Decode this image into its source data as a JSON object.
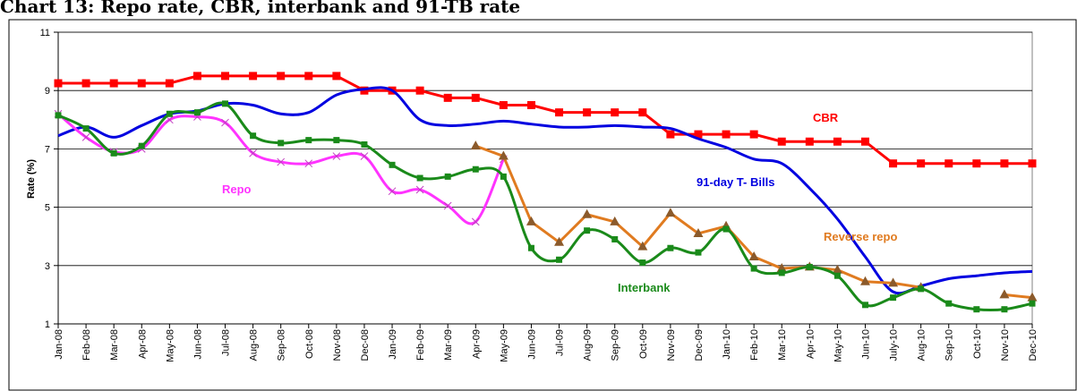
{
  "chart_data": {
    "type": "line",
    "title": "Chart 13: Repo rate, CBR, interbank and 91-TB rate",
    "y_label": "Rate (%)",
    "categories": [
      "Jan-08",
      "Feb-08",
      "Mar-08",
      "Apr-08",
      "May-08",
      "Jun-08",
      "Jul-08",
      "Aug-08",
      "Sep-08",
      "Oct-08",
      "Nov-08",
      "Dec-08",
      "Jan-09",
      "Feb-09",
      "Mar-09",
      "Apr-09",
      "May-09",
      "Jun-09",
      "Jul-09",
      "Aug-09",
      "Sep-09",
      "Oct-09",
      "Nov-09",
      "Dec-09",
      "Jan-10",
      "Feb-10",
      "Mar-10",
      "Apr-10",
      "May-10",
      "Jun-10",
      "July-10",
      "Aug-10",
      "Sep-10",
      "Oct-10",
      "Nov-10",
      "Dec-10"
    ],
    "ylim": [
      1,
      11
    ],
    "yticks": [
      1,
      3,
      5,
      7,
      9,
      11
    ],
    "grid": true,
    "series": [
      {
        "name": "CBR",
        "color": "#ff0000",
        "marker": "square",
        "smooth": false,
        "values": [
          9.25,
          9.25,
          9.25,
          9.25,
          9.25,
          9.5,
          9.5,
          9.5,
          9.5,
          9.5,
          9.5,
          9.0,
          9.0,
          9.0,
          8.75,
          8.75,
          8.5,
          8.5,
          8.25,
          8.25,
          8.25,
          8.25,
          7.5,
          7.5,
          7.5,
          7.5,
          7.25,
          7.25,
          7.25,
          7.25,
          6.5,
          6.5,
          6.5,
          6.5,
          6.5,
          6.5
        ]
      },
      {
        "name": "91-day T- Bills",
        "color": "#0000e0",
        "marker": "none",
        "smooth": true,
        "values": [
          7.45,
          7.75,
          7.4,
          7.8,
          8.2,
          8.3,
          8.55,
          8.5,
          8.2,
          8.25,
          8.85,
          9.05,
          9.0,
          8.0,
          7.8,
          7.85,
          7.95,
          7.85,
          7.75,
          7.75,
          7.8,
          7.75,
          7.7,
          7.35,
          7.05,
          6.65,
          6.5,
          5.65,
          4.6,
          3.3,
          2.1,
          2.3,
          2.55,
          2.65,
          2.75,
          2.8
        ]
      },
      {
        "name": "Repo",
        "color": "#ff33ff",
        "marker": "x",
        "smooth": true,
        "values": [
          8.2,
          7.4,
          6.9,
          7.0,
          8.0,
          8.1,
          7.9,
          6.85,
          6.55,
          6.5,
          6.75,
          6.75,
          5.55,
          5.6,
          5.05,
          4.5,
          6.65,
          null,
          null,
          null,
          null,
          null,
          null,
          null,
          null,
          null,
          null,
          null,
          null,
          null,
          null,
          null,
          null,
          null,
          null,
          null
        ]
      },
      {
        "name": "Reverse repo",
        "color": "#e07b20",
        "marker": "triangle",
        "smooth": false,
        "values": [
          null,
          null,
          null,
          null,
          null,
          null,
          null,
          null,
          null,
          null,
          null,
          null,
          null,
          null,
          null,
          7.1,
          6.75,
          4.5,
          3.8,
          4.75,
          4.5,
          3.65,
          4.8,
          4.1,
          4.35,
          3.3,
          2.9,
          2.95,
          2.85,
          2.45,
          2.4,
          2.25,
          null,
          null,
          2.0,
          1.9
        ]
      },
      {
        "name": "Interbank",
        "color": "#1a8a1a",
        "marker": "square",
        "smooth": true,
        "values": [
          8.15,
          7.7,
          6.85,
          7.1,
          8.2,
          8.25,
          8.55,
          7.45,
          7.2,
          7.3,
          7.3,
          7.15,
          6.45,
          6.0,
          6.05,
          6.3,
          6.05,
          3.6,
          3.2,
          4.2,
          3.9,
          3.1,
          3.6,
          3.45,
          4.25,
          2.9,
          2.75,
          2.95,
          2.65,
          1.65,
          1.9,
          2.2,
          1.7,
          1.5,
          1.5,
          1.7
        ]
      }
    ]
  }
}
